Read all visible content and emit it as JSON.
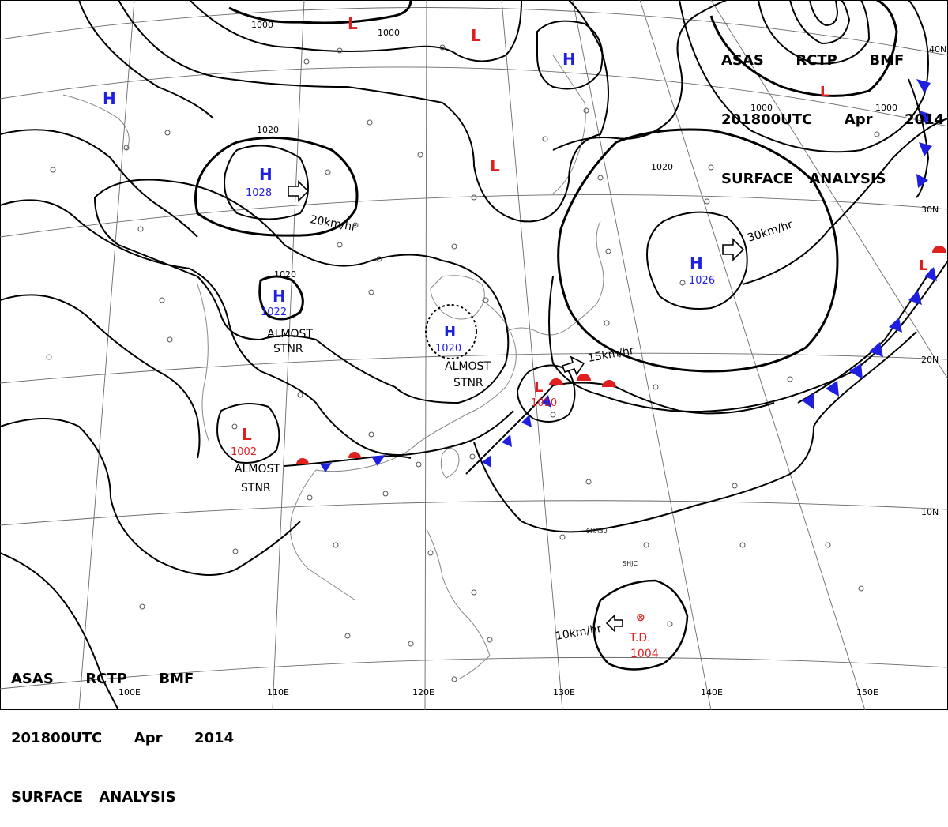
{
  "header_top": {
    "line1": "ASAS  RCTP  BMF",
    "line2": "201800UTC  Apr  2014",
    "line3": "SURFACE ANALYSIS"
  },
  "header_bottom": {
    "line1": "ASAS  RCTP  BMF",
    "line2": "201800UTC  Apr  2014",
    "line3": "SURFACE ANALYSIS"
  },
  "colors": {
    "high": "#1f1fe0",
    "low": "#e01f1f",
    "isobar": "#000000",
    "grid": "#555555",
    "coast": "#777777"
  },
  "grid_labels": {
    "lon_110": "110E",
    "lon_120": "120E",
    "lon_130": "130E",
    "lon_140": "140E",
    "lon_150": "150E",
    "lon_100": "100E",
    "lat_30": "30N",
    "lat_20": "20N",
    "lat_10": "10N",
    "lat_40": "40N"
  },
  "isobar_labels": {
    "a": "1000",
    "b": "1000",
    "c": "1020",
    "d": "1020",
    "e": "1020",
    "f": "1000",
    "g": "1000"
  },
  "centers": {
    "h1": {
      "symbol": "H",
      "value": "1028"
    },
    "h2": {
      "symbol": "H",
      "value": "1022"
    },
    "h3": {
      "symbol": "H",
      "value": "1020"
    },
    "h4": {
      "symbol": "H",
      "value": "1026"
    },
    "h5": {
      "symbol": "H",
      "value": ""
    },
    "h6": {
      "symbol": "H",
      "value": ""
    },
    "l1": {
      "symbol": "L",
      "value": "1002"
    },
    "l2": {
      "symbol": "L",
      "value": "1010"
    },
    "l3": {
      "symbol": "L",
      "value": ""
    },
    "l4": {
      "symbol": "L",
      "value": ""
    },
    "l5": {
      "symbol": "L",
      "value": ""
    },
    "l6": {
      "symbol": "L",
      "value": ""
    },
    "l7": {
      "symbol": "L",
      "value": ""
    },
    "td": {
      "symbol": "T.D.",
      "value": "1004"
    }
  },
  "motion": {
    "m1": "20km/hr",
    "m2": "30km/hr",
    "m3": "15km/hr",
    "m4": "10km/hr"
  },
  "notes": {
    "stnr_a1": "ALMOST",
    "stnr_a2": "STNR",
    "stnr_b1": "ALMOST",
    "stnr_b2": "STNR",
    "stnr_c1": "ALMOST",
    "stnr_c2": "STNR"
  },
  "station_labels": {
    "s1": "SHJC",
    "s2": "9HA30"
  }
}
